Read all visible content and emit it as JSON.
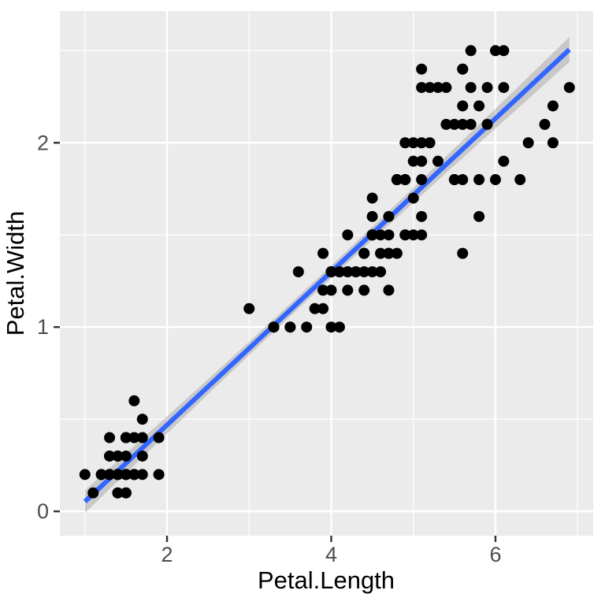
{
  "chart_data": {
    "type": "scatter",
    "title": "",
    "xlabel": "Petal.Length",
    "ylabel": "Petal.Width",
    "xlim": [
      0.695,
      7.19
    ],
    "ylim": [
      -0.132,
      2.715
    ],
    "x_ticks": [
      2,
      4,
      6
    ],
    "y_ticks": [
      0,
      1,
      2
    ],
    "x_minor": [
      1,
      3,
      5,
      7
    ],
    "y_minor": [
      0.5,
      1.5,
      2.5
    ],
    "grid": true,
    "legend_position": "none",
    "points": [
      [
        1.4,
        0.2
      ],
      [
        1.4,
        0.2
      ],
      [
        1.3,
        0.2
      ],
      [
        1.5,
        0.2
      ],
      [
        1.4,
        0.2
      ],
      [
        1.7,
        0.4
      ],
      [
        1.4,
        0.3
      ],
      [
        1.5,
        0.2
      ],
      [
        1.4,
        0.2
      ],
      [
        1.5,
        0.1
      ],
      [
        1.5,
        0.2
      ],
      [
        1.6,
        0.2
      ],
      [
        1.4,
        0.1
      ],
      [
        1.1,
        0.1
      ],
      [
        1.2,
        0.2
      ],
      [
        1.5,
        0.4
      ],
      [
        1.3,
        0.4
      ],
      [
        1.4,
        0.3
      ],
      [
        1.7,
        0.3
      ],
      [
        1.5,
        0.3
      ],
      [
        1.7,
        0.2
      ],
      [
        1.5,
        0.4
      ],
      [
        1.0,
        0.2
      ],
      [
        1.7,
        0.5
      ],
      [
        1.9,
        0.2
      ],
      [
        1.6,
        0.2
      ],
      [
        1.6,
        0.4
      ],
      [
        1.5,
        0.2
      ],
      [
        1.4,
        0.2
      ],
      [
        1.6,
        0.2
      ],
      [
        1.6,
        0.2
      ],
      [
        1.5,
        0.4
      ],
      [
        1.5,
        0.1
      ],
      [
        1.4,
        0.2
      ],
      [
        1.5,
        0.2
      ],
      [
        1.2,
        0.2
      ],
      [
        1.3,
        0.2
      ],
      [
        1.4,
        0.1
      ],
      [
        1.3,
        0.2
      ],
      [
        1.5,
        0.2
      ],
      [
        1.3,
        0.3
      ],
      [
        1.3,
        0.3
      ],
      [
        1.3,
        0.2
      ],
      [
        1.6,
        0.6
      ],
      [
        1.9,
        0.4
      ],
      [
        1.4,
        0.3
      ],
      [
        1.6,
        0.2
      ],
      [
        1.4,
        0.2
      ],
      [
        1.5,
        0.2
      ],
      [
        1.4,
        0.2
      ],
      [
        4.7,
        1.4
      ],
      [
        4.5,
        1.5
      ],
      [
        4.9,
        1.5
      ],
      [
        4.0,
        1.3
      ],
      [
        4.6,
        1.5
      ],
      [
        4.5,
        1.3
      ],
      [
        4.7,
        1.6
      ],
      [
        3.3,
        1.0
      ],
      [
        4.6,
        1.3
      ],
      [
        3.9,
        1.4
      ],
      [
        3.5,
        1.0
      ],
      [
        4.2,
        1.5
      ],
      [
        4.0,
        1.0
      ],
      [
        4.7,
        1.4
      ],
      [
        3.6,
        1.3
      ],
      [
        4.4,
        1.4
      ],
      [
        4.5,
        1.5
      ],
      [
        4.1,
        1.0
      ],
      [
        4.5,
        1.5
      ],
      [
        3.9,
        1.1
      ],
      [
        4.8,
        1.8
      ],
      [
        4.0,
        1.3
      ],
      [
        4.9,
        1.5
      ],
      [
        4.7,
        1.2
      ],
      [
        4.3,
        1.3
      ],
      [
        4.4,
        1.4
      ],
      [
        4.8,
        1.4
      ],
      [
        5.0,
        1.7
      ],
      [
        4.5,
        1.5
      ],
      [
        3.5,
        1.0
      ],
      [
        3.8,
        1.1
      ],
      [
        3.7,
        1.0
      ],
      [
        3.9,
        1.2
      ],
      [
        5.1,
        1.6
      ],
      [
        4.5,
        1.5
      ],
      [
        4.5,
        1.6
      ],
      [
        4.7,
        1.5
      ],
      [
        4.4,
        1.3
      ],
      [
        4.1,
        1.3
      ],
      [
        4.0,
        1.3
      ],
      [
        4.4,
        1.2
      ],
      [
        4.6,
        1.4
      ],
      [
        4.0,
        1.2
      ],
      [
        3.3,
        1.0
      ],
      [
        4.2,
        1.3
      ],
      [
        4.2,
        1.2
      ],
      [
        4.2,
        1.3
      ],
      [
        4.3,
        1.3
      ],
      [
        3.0,
        1.1
      ],
      [
        4.1,
        1.3
      ],
      [
        6.0,
        2.5
      ],
      [
        5.1,
        1.9
      ],
      [
        5.9,
        2.1
      ],
      [
        5.6,
        1.8
      ],
      [
        5.8,
        2.2
      ],
      [
        6.6,
        2.1
      ],
      [
        4.5,
        1.7
      ],
      [
        6.3,
        1.8
      ],
      [
        5.8,
        1.8
      ],
      [
        6.1,
        2.5
      ],
      [
        5.1,
        2.0
      ],
      [
        5.3,
        1.9
      ],
      [
        5.5,
        2.1
      ],
      [
        5.0,
        2.0
      ],
      [
        5.1,
        2.4
      ],
      [
        5.3,
        2.3
      ],
      [
        5.5,
        1.8
      ],
      [
        6.7,
        2.2
      ],
      [
        6.9,
        2.3
      ],
      [
        5.0,
        1.5
      ],
      [
        5.7,
        2.3
      ],
      [
        4.9,
        2.0
      ],
      [
        6.7,
        2.0
      ],
      [
        4.9,
        1.8
      ],
      [
        5.7,
        2.1
      ],
      [
        6.0,
        1.8
      ],
      [
        4.8,
        1.8
      ],
      [
        4.9,
        1.8
      ],
      [
        5.6,
        2.1
      ],
      [
        5.8,
        1.6
      ],
      [
        6.1,
        1.9
      ],
      [
        6.4,
        2.0
      ],
      [
        5.6,
        2.2
      ],
      [
        5.1,
        1.5
      ],
      [
        5.6,
        1.4
      ],
      [
        6.1,
        2.3
      ],
      [
        5.6,
        2.4
      ],
      [
        5.5,
        1.8
      ],
      [
        4.8,
        1.8
      ],
      [
        5.4,
        2.1
      ],
      [
        5.6,
        2.4
      ],
      [
        5.1,
        2.3
      ],
      [
        5.1,
        1.9
      ],
      [
        5.9,
        2.3
      ],
      [
        5.7,
        2.5
      ],
      [
        5.2,
        2.3
      ],
      [
        5.0,
        1.9
      ],
      [
        5.2,
        2.0
      ],
      [
        5.4,
        2.3
      ],
      [
        5.1,
        1.8
      ]
    ],
    "smooth": {
      "method": "lm",
      "line": {
        "x": [
          1.0,
          6.9
        ],
        "y": [
          0.053,
          2.506
        ]
      },
      "ribbon": {
        "x": [
          1.0,
          1.5,
          2.0,
          2.5,
          3.0,
          3.5,
          4.0,
          4.5,
          5.0,
          5.5,
          6.0,
          6.5,
          6.9
        ],
        "upper": [
          0.114,
          0.314,
          0.515,
          0.717,
          0.92,
          1.126,
          1.334,
          1.544,
          1.756,
          1.97,
          2.185,
          2.401,
          2.574
        ],
        "lower": [
          -0.009,
          0.207,
          0.422,
          0.636,
          0.848,
          1.059,
          1.267,
          1.472,
          1.675,
          1.877,
          2.078,
          2.278,
          2.438
        ]
      }
    },
    "style": {
      "panel_bg": "#EBEBEB",
      "grid_color": "#FFFFFF",
      "point_color": "#000000",
      "line_color": "#3366FF",
      "ribbon_color": "#999999",
      "ribbon_opacity": 0.42,
      "axis_text_color": "#4D4D4D",
      "axis_title_color": "#000000",
      "tick_color": "#333333",
      "background": "#FFFFFF"
    }
  }
}
